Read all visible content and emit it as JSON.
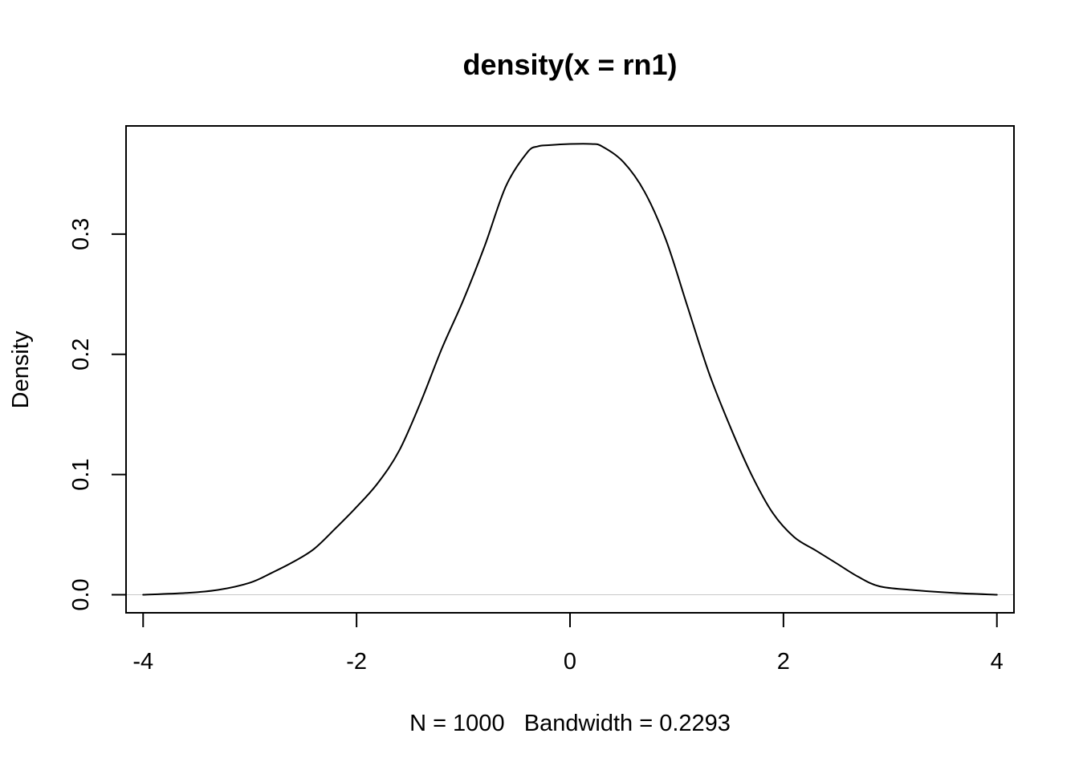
{
  "chart_data": {
    "type": "line",
    "title": "density(x = rn1)",
    "xlabel": "N = 1000   Bandwidth = 0.2293",
    "ylabel": "Density",
    "xlim": [
      -4.16,
      4.16
    ],
    "ylim": [
      -0.015,
      0.39
    ],
    "x_ticks": [
      -4,
      -2,
      0,
      2,
      4
    ],
    "x_tick_labels": [
      "-4",
      "-2",
      "0",
      "2",
      "4"
    ],
    "y_ticks": [
      0.0,
      0.1,
      0.2,
      0.3
    ],
    "y_tick_labels": [
      "0.0",
      "0.1",
      "0.2",
      "0.3"
    ],
    "baseline": 0,
    "grid": false,
    "series": [
      {
        "color": "#000000",
        "x": [
          -4.0,
          -3.6,
          -3.3,
          -3.0,
          -2.8,
          -2.6,
          -2.4,
          -2.2,
          -2.0,
          -1.8,
          -1.6,
          -1.4,
          -1.2,
          -1.0,
          -0.8,
          -0.6,
          -0.4,
          -0.3,
          -0.2,
          0.0,
          0.2,
          0.3,
          0.5,
          0.7,
          0.9,
          1.1,
          1.3,
          1.5,
          1.7,
          1.9,
          2.1,
          2.3,
          2.5,
          2.7,
          2.9,
          3.2,
          3.6,
          4.0
        ],
        "y": [
          0.0,
          0.0015,
          0.004,
          0.01,
          0.018,
          0.027,
          0.038,
          0.055,
          0.073,
          0.093,
          0.12,
          0.16,
          0.205,
          0.245,
          0.29,
          0.34,
          0.368,
          0.373,
          0.374,
          0.375,
          0.375,
          0.373,
          0.36,
          0.335,
          0.295,
          0.24,
          0.185,
          0.14,
          0.1,
          0.068,
          0.048,
          0.037,
          0.026,
          0.015,
          0.007,
          0.004,
          0.0015,
          0.0
        ]
      }
    ]
  }
}
